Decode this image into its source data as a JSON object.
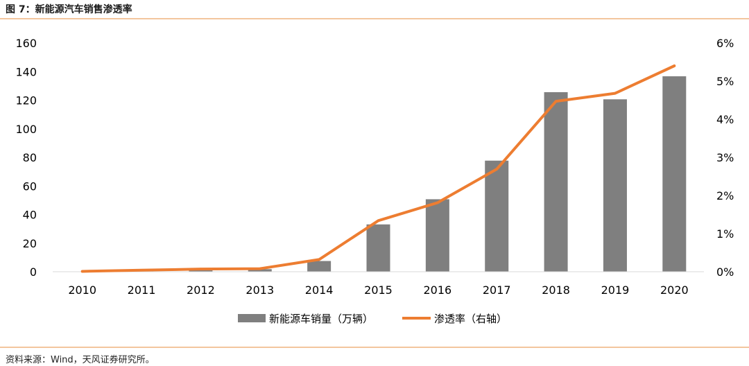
{
  "header": {
    "figure_title": "图 7：新能源汽车销售渗透率"
  },
  "footer": {
    "source": "资料来源：Wind，天风证券研究所。"
  },
  "colors": {
    "bar": "#7f7f7f",
    "line": "#ed7d31",
    "rule": "#f3c69d"
  },
  "chart_data": {
    "type": "bar",
    "categories": [
      "2010",
      "2011",
      "2012",
      "2013",
      "2014",
      "2015",
      "2016",
      "2017",
      "2018",
      "2019",
      "2020"
    ],
    "series": [
      {
        "name": "新能源车销量（万辆）",
        "type": "bar",
        "axis": "left",
        "values": [
          0.1,
          0.8,
          1.3,
          1.8,
          7.5,
          33.1,
          50.7,
          77.7,
          125.6,
          120.6,
          136.7
        ]
      },
      {
        "name": "渗透率（右轴）",
        "type": "line",
        "axis": "right",
        "values": [
          0.01,
          0.04,
          0.07,
          0.08,
          0.32,
          1.34,
          1.81,
          2.69,
          4.47,
          4.68,
          5.4
        ]
      }
    ],
    "y_left": {
      "lim": [
        0,
        160
      ],
      "ticks": [
        "0",
        "20",
        "40",
        "60",
        "80",
        "100",
        "120",
        "140",
        "160"
      ]
    },
    "y_right": {
      "lim": [
        0,
        6
      ],
      "ticks": [
        "0%",
        "1%",
        "2%",
        "3%",
        "4%",
        "5%",
        "6%"
      ]
    },
    "grid": false,
    "legend": "bottom-center"
  }
}
